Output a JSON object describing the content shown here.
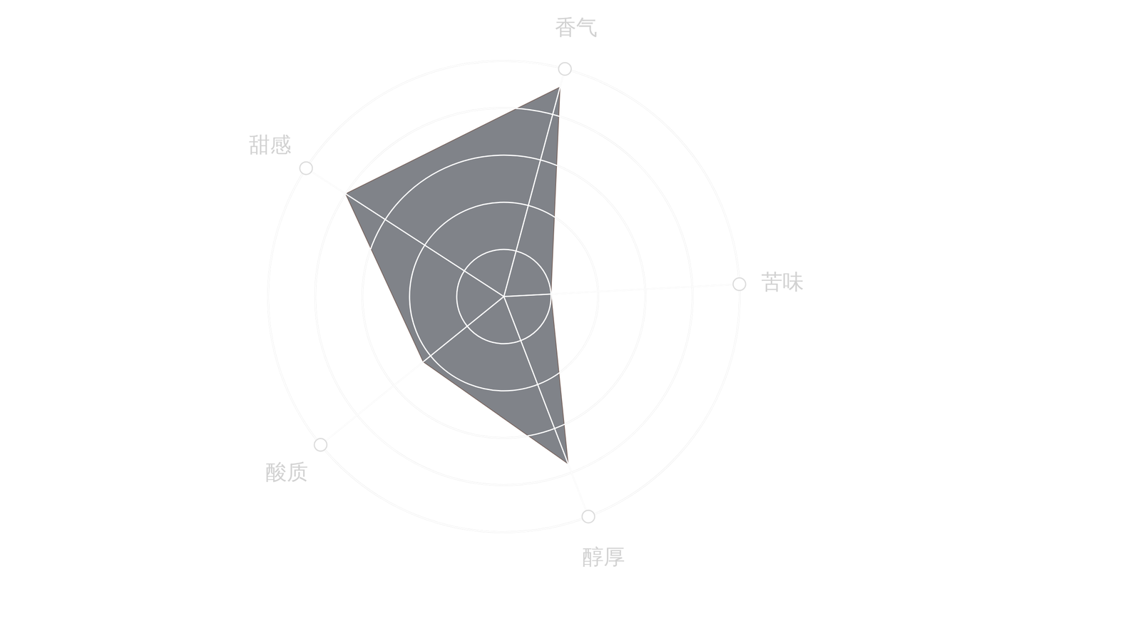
{
  "chart_data": {
    "type": "radar",
    "categories": [
      "香气",
      "苦味",
      "醇厚",
      "酸质",
      "甜感"
    ],
    "values": [
      4.6,
      1.0,
      3.8,
      2.2,
      4.0
    ],
    "color": "#808389",
    "rlim": [
      0,
      5
    ],
    "rticks": [
      1,
      2,
      3,
      4,
      5
    ],
    "grid": true,
    "tick_labels": false
  }
}
